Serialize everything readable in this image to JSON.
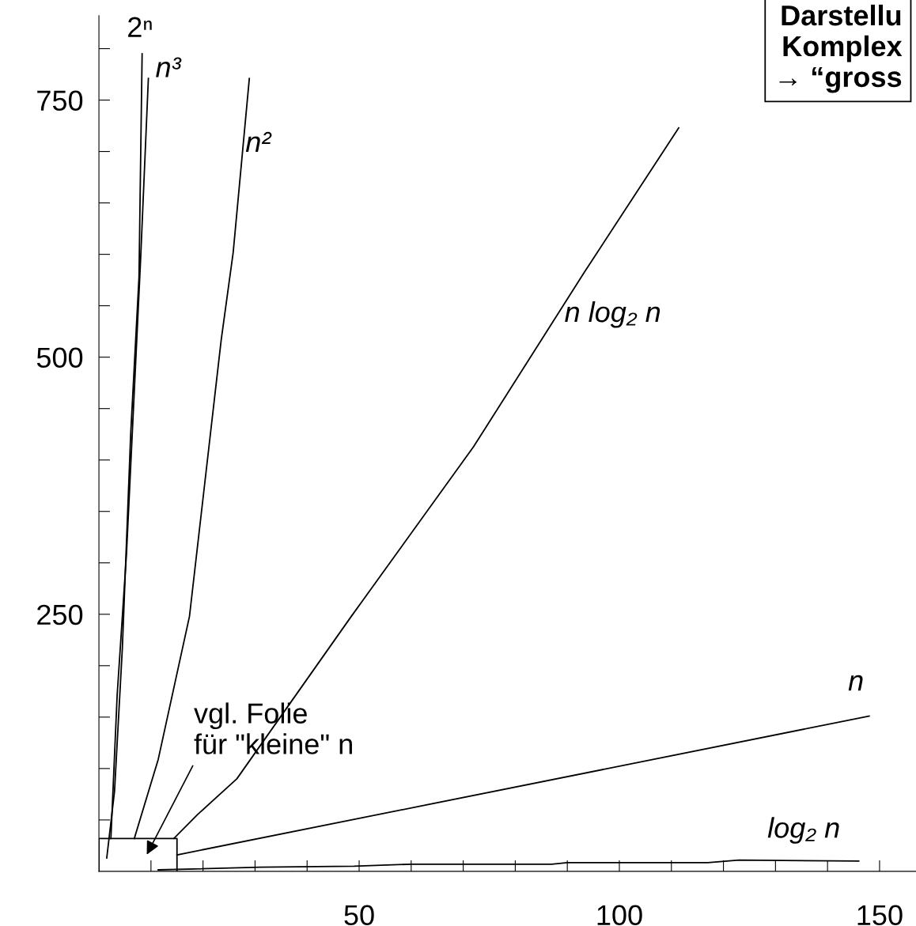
{
  "chart_data": {
    "type": "line",
    "xlim": [
      0,
      157
    ],
    "ylim": [
      0,
      832
    ],
    "xticks": [
      {
        "value": 10,
        "label": null
      },
      {
        "value": 20,
        "label": null
      },
      {
        "value": 30,
        "label": null
      },
      {
        "value": 40,
        "label": null
      },
      50,
      {
        "value": 60,
        "label": null
      },
      {
        "value": 70,
        "label": null
      },
      {
        "value": 80,
        "label": null
      },
      {
        "value": 90,
        "label": null
      },
      100,
      {
        "value": 110,
        "label": null
      },
      {
        "value": 120,
        "label": null
      },
      {
        "value": 130,
        "label": null
      },
      {
        "value": 140,
        "label": null
      },
      150
    ],
    "yticks": [
      {
        "value": 50,
        "label": null
      },
      {
        "value": 100,
        "label": null
      },
      {
        "value": 150,
        "label": null
      },
      {
        "value": 200,
        "label": null
      },
      250,
      {
        "value": 300,
        "label": null
      },
      {
        "value": 350,
        "label": null
      },
      {
        "value": 400,
        "label": null
      },
      {
        "value": 450,
        "label": null
      },
      500,
      {
        "value": 550,
        "label": null
      },
      {
        "value": 600,
        "label": null
      },
      {
        "value": 650,
        "label": null
      },
      {
        "value": 700,
        "label": null
      },
      750,
      {
        "value": 800,
        "label": null
      }
    ],
    "grid": false,
    "legend": false,
    "marker": "none",
    "line_style": "solid",
    "series": [
      {
        "name": "2ⁿ",
        "color": "#000000",
        "x": [
          1.5,
          3.0,
          4.5,
          6.1,
          7.7,
          8.3
        ],
        "values": [
          13,
          78,
          217,
          425,
          578,
          795
        ]
      },
      {
        "name": "n³",
        "color": "#000000",
        "x": [
          2.3,
          3.5,
          5.3,
          8.0,
          9.5
        ],
        "values": [
          32,
          171,
          309,
          594,
          771
        ]
      },
      {
        "name": "n²",
        "color": "#000000",
        "x": [
          6.8,
          11.4,
          17.4,
          23.5,
          25.8,
          28.9
        ],
        "values": [
          32,
          109,
          248,
          517,
          602,
          771
        ]
      },
      {
        "name": "n log₂ n",
        "color": "#000000",
        "x": [
          14.4,
          18.9,
          26.5,
          48.5,
          72,
          93.2,
          111.4
        ],
        "values": [
          32,
          55,
          90,
          248,
          413,
          582,
          723
        ]
      },
      {
        "name": "n",
        "color": "#000000",
        "x": [
          15,
          148
        ],
        "values": [
          16,
          151
        ]
      },
      {
        "name": "log₂ n",
        "color": "#000000",
        "x": [
          11.4,
          31,
          49,
          60,
          87,
          90,
          117,
          123,
          146
        ],
        "values": [
          1.5,
          4,
          5,
          7,
          7,
          8.5,
          8.5,
          11,
          10
        ]
      }
    ],
    "annotations": [
      "vgl. Folie\nfür \"kleine\" n",
      "Darstellu\nKomplex\n→ “gross"
    ]
  }
}
